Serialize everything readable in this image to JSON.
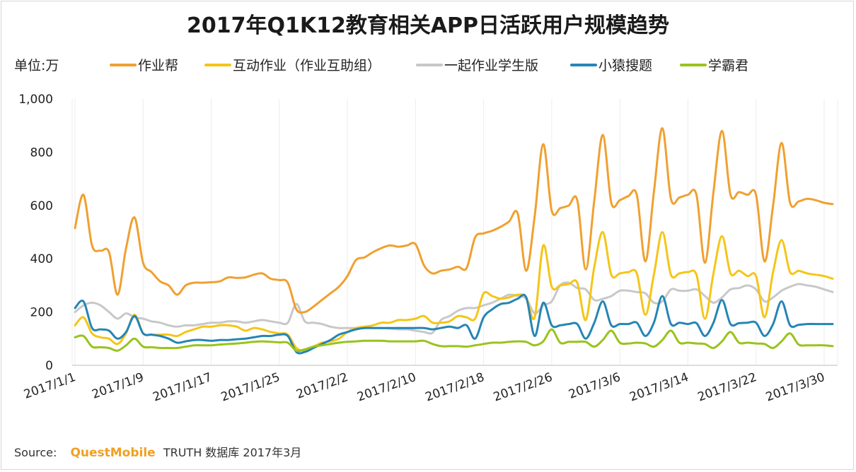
{
  "title": "2017年Q1K12教育相关APP日活跃用户规模趋势",
  "unit_label": "单位:万",
  "source": {
    "label": "Source:",
    "brand": "QuestMobile",
    "rest": "TRUTH 数据库 2017年3月"
  },
  "chart_data": {
    "type": "line",
    "title": "2017年Q1K12教育相关APP日活跃用户规模趋势",
    "ylabel": "单位:万",
    "ylim": [
      0,
      1000
    ],
    "yticks": [
      0,
      200,
      400,
      600,
      800,
      1000
    ],
    "ytick_labels": [
      "0",
      "200",
      "400",
      "600",
      "800",
      "1,000"
    ],
    "xtick_labels": [
      "2017/1/1",
      "2017/1/9",
      "2017/1/17",
      "2017/1/25",
      "2017/2/2",
      "2017/2/10",
      "2017/2/18",
      "2017/2/26",
      "2017/3/6",
      "2017/3/14",
      "2017/3/22",
      "2017/3/30"
    ],
    "grid": "vertical",
    "x": [
      "1/1",
      "1/2",
      "1/3",
      "1/4",
      "1/5",
      "1/6",
      "1/7",
      "1/8",
      "1/9",
      "1/10",
      "1/11",
      "1/12",
      "1/13",
      "1/14",
      "1/15",
      "1/16",
      "1/17",
      "1/18",
      "1/19",
      "1/20",
      "1/21",
      "1/22",
      "1/23",
      "1/24",
      "1/25",
      "1/26",
      "1/27",
      "1/28",
      "1/29",
      "1/30",
      "1/31",
      "2/1",
      "2/2",
      "2/3",
      "2/4",
      "2/5",
      "2/6",
      "2/7",
      "2/8",
      "2/9",
      "2/10",
      "2/11",
      "2/12",
      "2/13",
      "2/14",
      "2/15",
      "2/16",
      "2/17",
      "2/18",
      "2/19",
      "2/20",
      "2/21",
      "2/22",
      "2/23",
      "2/24",
      "2/25",
      "2/26",
      "2/27",
      "2/28",
      "3/1",
      "3/2",
      "3/3",
      "3/4",
      "3/5",
      "3/6",
      "3/7",
      "3/8",
      "3/9",
      "3/10",
      "3/11",
      "3/12",
      "3/13",
      "3/14",
      "3/15",
      "3/16",
      "3/17",
      "3/18",
      "3/19",
      "3/20",
      "3/21",
      "3/22",
      "3/23",
      "3/24",
      "3/25",
      "3/26",
      "3/27",
      "3/28",
      "3/29",
      "3/30",
      "3/31"
    ],
    "series": [
      {
        "name": "作业帮",
        "color": "#f0a030",
        "values": [
          515,
          640,
          450,
          430,
          425,
          265,
          440,
          555,
          385,
          350,
          315,
          300,
          265,
          300,
          310,
          310,
          312,
          315,
          330,
          328,
          330,
          340,
          345,
          325,
          320,
          310,
          210,
          200,
          220,
          245,
          270,
          295,
          335,
          395,
          405,
          425,
          440,
          450,
          445,
          450,
          455,
          375,
          345,
          355,
          360,
          370,
          365,
          480,
          495,
          505,
          520,
          540,
          570,
          355,
          560,
          830,
          580,
          590,
          600,
          620,
          360,
          620,
          865,
          610,
          620,
          635,
          640,
          390,
          650,
          890,
          625,
          630,
          640,
          640,
          385,
          650,
          880,
          640,
          650,
          640,
          640,
          390,
          600,
          835,
          610,
          615,
          625,
          620,
          610,
          605
        ]
      },
      {
        "name": "互动作业（作业互助组）",
        "color": "#f5c518",
        "values": [
          150,
          180,
          120,
          105,
          100,
          80,
          120,
          190,
          120,
          115,
          115,
          115,
          110,
          125,
          135,
          145,
          145,
          150,
          150,
          145,
          130,
          140,
          135,
          125,
          120,
          115,
          65,
          55,
          70,
          85,
          90,
          100,
          125,
          140,
          145,
          150,
          160,
          160,
          170,
          170,
          175,
          185,
          160,
          160,
          165,
          185,
          180,
          175,
          270,
          260,
          250,
          255,
          265,
          255,
          180,
          450,
          295,
          300,
          305,
          310,
          170,
          370,
          500,
          340,
          345,
          350,
          345,
          190,
          340,
          500,
          340,
          345,
          350,
          340,
          175,
          345,
          485,
          345,
          355,
          335,
          335,
          180,
          350,
          470,
          350,
          355,
          345,
          340,
          335,
          325
        ]
      },
      {
        "name": "一起作业学生版",
        "color": "#c8c8c8",
        "values": [
          200,
          225,
          235,
          225,
          200,
          175,
          195,
          180,
          175,
          165,
          160,
          150,
          145,
          150,
          150,
          155,
          160,
          160,
          165,
          165,
          160,
          165,
          170,
          165,
          160,
          160,
          230,
          165,
          160,
          155,
          145,
          140,
          140,
          140,
          140,
          140,
          140,
          138,
          135,
          135,
          130,
          125,
          122,
          170,
          185,
          205,
          215,
          215,
          225,
          235,
          250,
          265,
          260,
          250,
          195,
          225,
          240,
          300,
          310,
          290,
          285,
          245,
          250,
          260,
          280,
          280,
          275,
          270,
          235,
          240,
          285,
          280,
          280,
          285,
          260,
          235,
          255,
          285,
          290,
          300,
          285,
          240,
          255,
          280,
          295,
          305,
          300,
          295,
          285,
          275
        ]
      },
      {
        "name": "小猿搜题",
        "color": "#2585b5",
        "values": [
          215,
          240,
          140,
          135,
          130,
          100,
          125,
          185,
          120,
          115,
          110,
          100,
          85,
          90,
          95,
          95,
          92,
          95,
          95,
          98,
          100,
          105,
          110,
          110,
          115,
          110,
          50,
          50,
          65,
          80,
          95,
          115,
          125,
          135,
          140,
          140,
          140,
          140,
          140,
          140,
          140,
          140,
          135,
          140,
          145,
          140,
          150,
          100,
          180,
          210,
          230,
          235,
          250,
          255,
          110,
          235,
          150,
          150,
          155,
          155,
          100,
          160,
          240,
          150,
          155,
          155,
          160,
          110,
          160,
          260,
          155,
          160,
          155,
          158,
          110,
          160,
          245,
          155,
          158,
          160,
          160,
          110,
          155,
          240,
          150,
          152,
          155,
          155,
          155,
          155
        ]
      },
      {
        "name": "学霸君",
        "color": "#9ac31c",
        "values": [
          105,
          110,
          70,
          68,
          65,
          55,
          75,
          100,
          70,
          68,
          65,
          65,
          65,
          70,
          75,
          75,
          75,
          78,
          80,
          82,
          85,
          88,
          90,
          88,
          86,
          85,
          55,
          60,
          70,
          75,
          80,
          85,
          88,
          90,
          92,
          92,
          92,
          90,
          90,
          90,
          90,
          92,
          80,
          72,
          72,
          72,
          70,
          75,
          80,
          85,
          85,
          88,
          90,
          88,
          75,
          90,
          135,
          85,
          88,
          88,
          88,
          70,
          95,
          130,
          85,
          82,
          85,
          82,
          70,
          95,
          130,
          85,
          85,
          82,
          80,
          65,
          90,
          125,
          85,
          85,
          82,
          80,
          65,
          90,
          120,
          78,
          75,
          75,
          75,
          72
        ]
      }
    ]
  }
}
